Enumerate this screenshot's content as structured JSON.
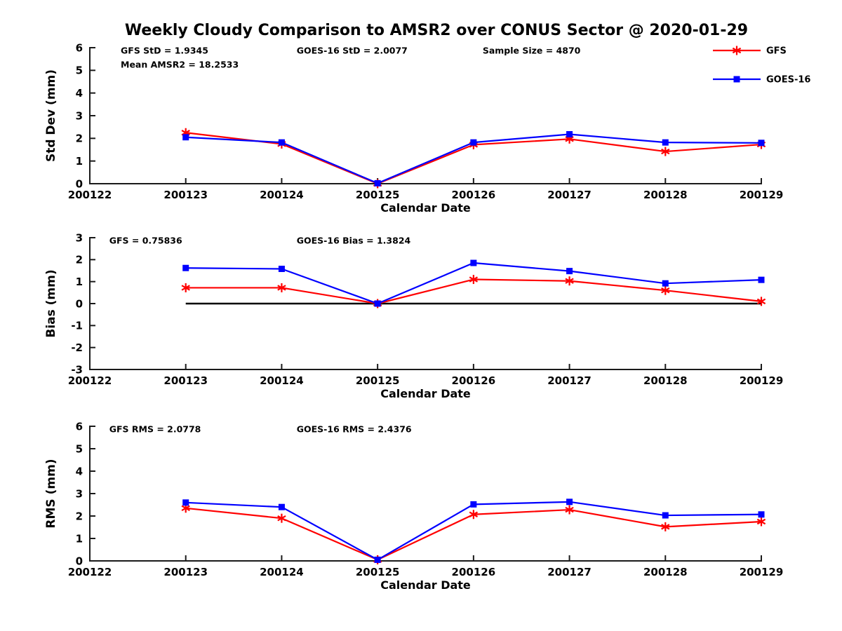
{
  "title": "Weekly Cloudy Comparison to AMSR2 over CONUS Sector @ 2020-01-29",
  "colors": {
    "gfs": "#ff0000",
    "goes16": "#0000ff",
    "axis": "#1a1a1a",
    "zero_line": "#000000",
    "background": "#ffffff"
  },
  "x_axis": {
    "label": "Calendar Date",
    "ticks": [
      "200122",
      "200123",
      "200124",
      "200125",
      "200126",
      "200127",
      "200128",
      "200129"
    ]
  },
  "legend": {
    "position": "top-right",
    "entries": [
      {
        "label": "GFS",
        "color": "#ff0000",
        "marker": "asterisk"
      },
      {
        "label": "GOES-16",
        "color": "#0000ff",
        "marker": "square"
      }
    ]
  },
  "chart_data": [
    {
      "type": "line",
      "ylabel": "Std Dev (mm)",
      "ylim": [
        0,
        6
      ],
      "ytick_step": 1,
      "grid": false,
      "x_categories": [
        "200123",
        "200124",
        "200125",
        "200126",
        "200127",
        "200128",
        "200129"
      ],
      "series": [
        {
          "name": "GFS",
          "color": "#ff0000",
          "marker": "asterisk",
          "values": [
            2.25,
            1.75,
            0.0,
            1.72,
            1.97,
            1.42,
            1.73
          ]
        },
        {
          "name": "GOES-16",
          "color": "#0000ff",
          "marker": "square",
          "values": [
            2.05,
            1.82,
            0.02,
            1.82,
            2.18,
            1.82,
            1.8
          ]
        }
      ],
      "annotations": [
        {
          "text": "GFS StD = 1.9345",
          "fx": 0.046,
          "row": 0
        },
        {
          "text": "Mean AMSR2 = 18.2533",
          "fx": 0.046,
          "row": 1
        },
        {
          "text": "GOES-16 StD = 2.0077",
          "fx": 0.308,
          "row": 0
        },
        {
          "text": "Sample Size = 4870",
          "fx": 0.585,
          "row": 0
        }
      ],
      "show_legend": true,
      "zero_line": false
    },
    {
      "type": "line",
      "ylabel": "Bias (mm)",
      "ylim": [
        -3,
        3
      ],
      "ytick_step": 1,
      "grid": false,
      "x_categories": [
        "200123",
        "200124",
        "200125",
        "200126",
        "200127",
        "200128",
        "200129"
      ],
      "series": [
        {
          "name": "GFS",
          "color": "#ff0000",
          "marker": "asterisk",
          "values": [
            0.72,
            0.72,
            0.0,
            1.1,
            1.03,
            0.6,
            0.1
          ]
        },
        {
          "name": "GOES-16",
          "color": "#0000ff",
          "marker": "square",
          "values": [
            1.62,
            1.58,
            0.0,
            1.85,
            1.48,
            0.92,
            1.08
          ]
        }
      ],
      "annotations": [
        {
          "text": "GFS = 0.75836",
          "fx": 0.029,
          "row": 0
        },
        {
          "text": "GOES-16 Bias  = 1.3824",
          "fx": 0.308,
          "row": 0
        }
      ],
      "show_legend": false,
      "zero_line": true
    },
    {
      "type": "line",
      "ylabel": "RMS (mm)",
      "ylim": [
        0,
        6
      ],
      "ytick_step": 1,
      "grid": false,
      "x_categories": [
        "200123",
        "200124",
        "200125",
        "200126",
        "200127",
        "200128",
        "200129"
      ],
      "series": [
        {
          "name": "GFS",
          "color": "#ff0000",
          "marker": "asterisk",
          "values": [
            2.35,
            1.9,
            0.05,
            2.07,
            2.28,
            1.52,
            1.75
          ]
        },
        {
          "name": "GOES-16",
          "color": "#0000ff",
          "marker": "square",
          "values": [
            2.6,
            2.4,
            0.05,
            2.52,
            2.63,
            2.03,
            2.07
          ]
        }
      ],
      "annotations": [
        {
          "text": "GFS RMS = 2.0778",
          "fx": 0.029,
          "row": 0
        },
        {
          "text": "GOES-16 RMS = 2.4376",
          "fx": 0.308,
          "row": 0
        }
      ],
      "show_legend": false,
      "zero_line": false
    }
  ]
}
